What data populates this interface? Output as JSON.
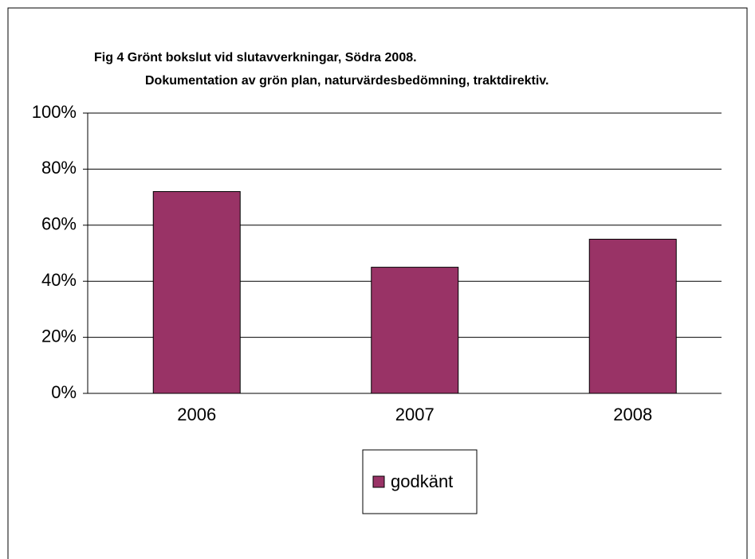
{
  "chart_data": {
    "type": "bar",
    "title": "Fig 4   Grönt bokslut vid slutavverkningar, Södra 2008.",
    "subtitle": "Dokumentation av grön plan, naturvärdesbedömning, traktdirektiv.",
    "categories": [
      "2006",
      "2007",
      "2008"
    ],
    "series": [
      {
        "name": "godkänt",
        "color": "#993366",
        "values": [
          72,
          45,
          55
        ]
      }
    ],
    "ylim": [
      0,
      100
    ],
    "yticks": [
      {
        "value": 0,
        "label": "0%"
      },
      {
        "value": 20,
        "label": "20%"
      },
      {
        "value": 40,
        "label": "40%"
      },
      {
        "value": 60,
        "label": "60%"
      },
      {
        "value": 80,
        "label": "80%"
      },
      {
        "value": 100,
        "label": "100%"
      }
    ],
    "grid": true
  }
}
